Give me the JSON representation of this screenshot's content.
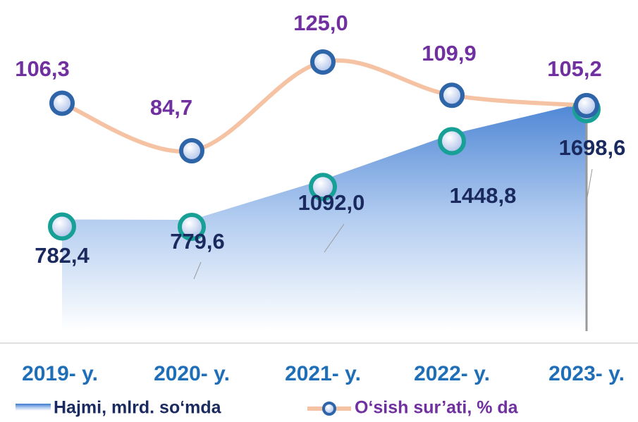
{
  "chart_data": {
    "type": "area-line",
    "categories": [
      "2019- y.",
      "2020- y.",
      "2021- y.",
      "2022- y.",
      "2023- y."
    ],
    "series": [
      {
        "name": "Hajmi, mlrd. so‘mda",
        "type": "area",
        "color": "#3a78d0",
        "values": [
          782.4,
          779.6,
          1092.0,
          1448.8,
          1698.6
        ],
        "value_labels": [
          "782,4",
          "779,6",
          "1092,0",
          "1448,8",
          "1698,6"
        ]
      },
      {
        "name": "O‘sish sur’ati, % da",
        "type": "line",
        "axis": "y2",
        "color": "#f5c3a3",
        "values": [
          106.3,
          84.7,
          125.0,
          109.9,
          105.2
        ],
        "value_labels": [
          "106,3",
          "84,7",
          "125,0",
          "109,9",
          "105,2"
        ]
      }
    ]
  }
}
